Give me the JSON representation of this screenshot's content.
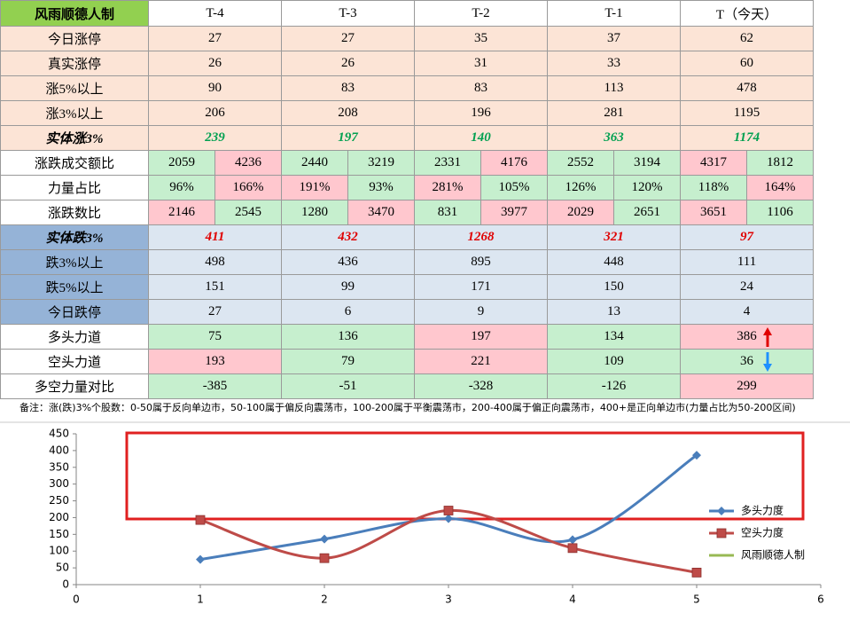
{
  "table": {
    "header": [
      "风雨顺德人制",
      "T-4",
      "T-3",
      "T-2",
      "T-1",
      "T（今天）"
    ],
    "rows": [
      {
        "label": "今日涨停",
        "cells": [
          27,
          27,
          35,
          37,
          62
        ]
      },
      {
        "label": "真实涨停",
        "cells": [
          26,
          26,
          31,
          33,
          60
        ]
      },
      {
        "label": "涨5%以上",
        "cells": [
          90,
          83,
          83,
          113,
          478
        ]
      },
      {
        "label": "涨3%以上",
        "cells": [
          206,
          208,
          196,
          281,
          1195
        ]
      },
      {
        "label": "实体涨3%",
        "cells": [
          239,
          197,
          140,
          363,
          1174
        ]
      },
      {
        "label": "涨跌成交额比",
        "cells": [
          2059,
          4236,
          2440,
          3219,
          2331,
          4176,
          2552,
          3194,
          4317,
          1812
        ]
      },
      {
        "label": "力量占比",
        "cells": [
          "96%",
          "166%",
          "191%",
          "93%",
          "281%",
          "105%",
          "126%",
          "120%",
          "118%",
          "164%"
        ]
      },
      {
        "label": "涨跌数比",
        "cells": [
          2146,
          2545,
          1280,
          3470,
          831,
          3977,
          2029,
          2651,
          3651,
          1106
        ]
      },
      {
        "label": "实体跌3%",
        "cells": [
          411,
          432,
          1268,
          321,
          97
        ]
      },
      {
        "label": "跌3%以上",
        "cells": [
          498,
          436,
          895,
          448,
          111
        ]
      },
      {
        "label": "跌5%以上",
        "cells": [
          151,
          99,
          171,
          150,
          24
        ]
      },
      {
        "label": "今日跌停",
        "cells": [
          27,
          6,
          9,
          13,
          4
        ]
      },
      {
        "label": "多头力道",
        "cells": [
          75,
          136,
          197,
          134,
          386
        ]
      },
      {
        "label": "空头力道",
        "cells": [
          193,
          79,
          221,
          109,
          36
        ]
      },
      {
        "label": "多空力量对比",
        "cells": [
          -385,
          -51,
          -328,
          -126,
          299
        ]
      }
    ],
    "note": "备注：涨(跌)3%个股数：0-50属于反向单边市，50-100属于偏反向震荡市，100-200属于平衡震荡市，200-400属于偏正向震荡市，400+是正向单边市(力量占比为50-200区间)"
  },
  "chart_data": {
    "type": "line",
    "x": [
      1,
      2,
      3,
      4,
      5
    ],
    "series": [
      {
        "name": "多头力度",
        "color": "#4a7ebb",
        "values": [
          75,
          136,
          197,
          134,
          386
        ]
      },
      {
        "name": "空头力度",
        "color": "#be4b48",
        "values": [
          193,
          79,
          221,
          109,
          36
        ]
      },
      {
        "name": "风雨顺德人制",
        "color": "#98b954",
        "values": [
          null,
          null,
          null,
          null,
          null
        ]
      }
    ],
    "xlim": [
      0,
      6
    ],
    "xticks": [
      0,
      1,
      2,
      3,
      4,
      5,
      6
    ],
    "ylim": [
      0,
      450
    ],
    "yticks": [
      0,
      50,
      100,
      150,
      200,
      250,
      300,
      350,
      400,
      450
    ],
    "smooth": true,
    "grid": false,
    "legend": "right"
  }
}
